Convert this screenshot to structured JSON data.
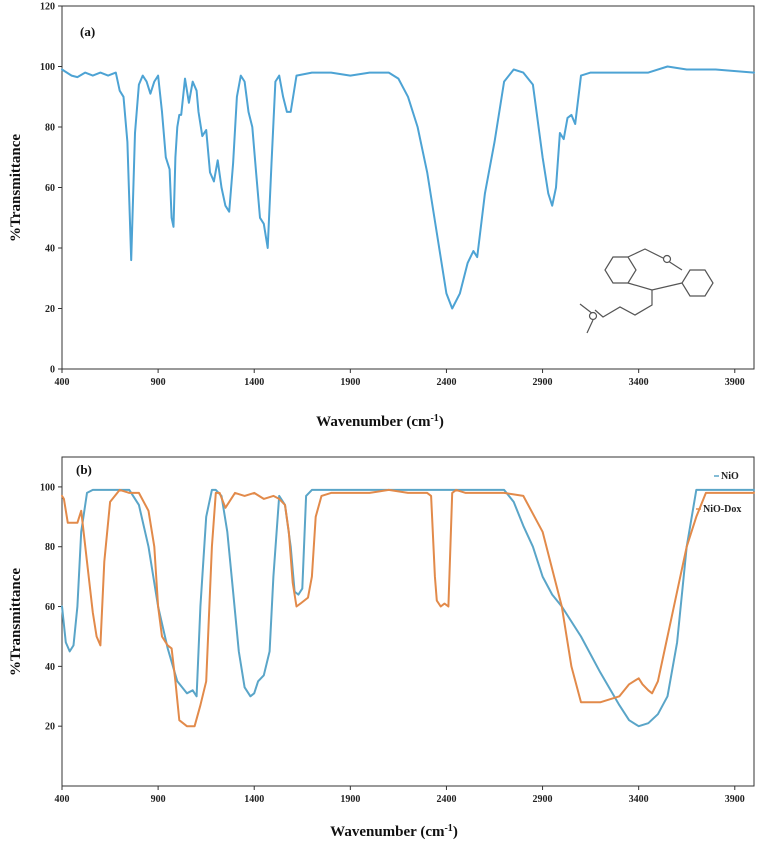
{
  "chart_data": [
    {
      "type": "line",
      "panel_label": "(a)",
      "xlabel": "Wavenumber (cm-1)",
      "xlabel_main": "Wavenumber (cm",
      "xlabel_sup": "-1",
      "xlabel_close": ")",
      "ylabel": "%Transmittance",
      "xlim": [
        400,
        4000
      ],
      "ylim": [
        0,
        120
      ],
      "xticks": [
        "400",
        "900",
        "1400",
        "1900",
        "2400",
        "2900",
        "3400",
        "3900"
      ],
      "yticks": [
        "0",
        "20",
        "40",
        "60",
        "80",
        "100",
        "120"
      ],
      "grid": false,
      "has_structure_inset": true,
      "series": [
        {
          "color": "#4da3d4",
          "x": [
            400,
            450,
            480,
            520,
            560,
            600,
            640,
            680,
            700,
            720,
            740,
            760,
            780,
            800,
            820,
            840,
            860,
            880,
            900,
            920,
            940,
            960,
            970,
            980,
            990,
            1000,
            1010,
            1020,
            1040,
            1060,
            1080,
            1100,
            1110,
            1130,
            1150,
            1170,
            1190,
            1210,
            1230,
            1250,
            1270,
            1290,
            1310,
            1330,
            1350,
            1370,
            1390,
            1410,
            1430,
            1450,
            1470,
            1490,
            1510,
            1530,
            1550,
            1570,
            1590,
            1620,
            1700,
            1800,
            1900,
            2000,
            2100,
            2150,
            2200,
            2250,
            2300,
            2350,
            2400,
            2430,
            2470,
            2510,
            2540,
            2560,
            2600,
            2650,
            2700,
            2750,
            2800,
            2850,
            2900,
            2930,
            2950,
            2970,
            2990,
            3010,
            3030,
            3050,
            3070,
            3100,
            3150,
            3300,
            3450,
            3550,
            3650,
            3800,
            4000
          ],
          "y": [
            99,
            97,
            96.5,
            98,
            97,
            98,
            97,
            98,
            92,
            90,
            75,
            36,
            78,
            94,
            97,
            95,
            91,
            95,
            97,
            85,
            70,
            66,
            50,
            47,
            70,
            80,
            84,
            84,
            96,
            88,
            95,
            92,
            85,
            77,
            79,
            65,
            62,
            69,
            60,
            54,
            52,
            68,
            90,
            97,
            95,
            85,
            80,
            65,
            50,
            48,
            40,
            68,
            95,
            97,
            90,
            85,
            85,
            97,
            98,
            98,
            97,
            98,
            98,
            96,
            90,
            80,
            65,
            45,
            25,
            20,
            25,
            35,
            39,
            37,
            58,
            75,
            95,
            99,
            98,
            94,
            70,
            58,
            54,
            60,
            78,
            76,
            83,
            84,
            81,
            97,
            98,
            98,
            98,
            100,
            99,
            99,
            98
          ]
        }
      ]
    },
    {
      "type": "line",
      "panel_label": "(b)",
      "xlabel": "Wavenumber (cm-1)",
      "xlabel_main": "Wavenumber (cm",
      "xlabel_sup": "-1",
      "xlabel_close": ")",
      "ylabel": "%Transmittance",
      "xlim": [
        400,
        4000
      ],
      "ylim": [
        0,
        110
      ],
      "xticks": [
        "400",
        "900",
        "1400",
        "1900",
        "2400",
        "2900",
        "3400",
        "3900"
      ],
      "yticks": [
        "20",
        "40",
        "60",
        "80",
        "100"
      ],
      "grid": false,
      "legend": "right",
      "series": [
        {
          "name": "NiO",
          "color": "#5aa5c8",
          "x": [
            400,
            420,
            440,
            460,
            480,
            500,
            530,
            560,
            600,
            650,
            700,
            750,
            800,
            850,
            900,
            950,
            1000,
            1050,
            1080,
            1100,
            1120,
            1150,
            1180,
            1200,
            1230,
            1260,
            1290,
            1320,
            1350,
            1380,
            1400,
            1420,
            1450,
            1480,
            1500,
            1530,
            1560,
            1590,
            1610,
            1630,
            1650,
            1670,
            1700,
            1750,
            1800,
            1900,
            2000,
            2200,
            2400,
            2500,
            2600,
            2650,
            2700,
            2750,
            2800,
            2850,
            2900,
            2950,
            3000,
            3100,
            3200,
            3300,
            3350,
            3400,
            3450,
            3500,
            3550,
            3600,
            3650,
            3700,
            3750,
            3800,
            4000
          ],
          "y": [
            60,
            48,
            45,
            47,
            60,
            85,
            98,
            99,
            99,
            99,
            99,
            99,
            94,
            80,
            60,
            46,
            35,
            31,
            32,
            30,
            60,
            90,
            99,
            99,
            97,
            85,
            65,
            45,
            33,
            30,
            31,
            35,
            37,
            45,
            70,
            97,
            94,
            80,
            65,
            64,
            66,
            97,
            99,
            99,
            99,
            99,
            99,
            99,
            99,
            99,
            99,
            99,
            99,
            95,
            87,
            80,
            70,
            64,
            60,
            50,
            38,
            27,
            22,
            20,
            21,
            24,
            30,
            48,
            80,
            99,
            99,
            99,
            99
          ]
        },
        {
          "name": "NiO-Dox",
          "color": "#e28a4a",
          "x": [
            400,
            410,
            430,
            450,
            480,
            500,
            530,
            560,
            580,
            600,
            620,
            650,
            700,
            750,
            800,
            850,
            880,
            900,
            920,
            950,
            970,
            990,
            1010,
            1050,
            1090,
            1120,
            1150,
            1180,
            1200,
            1220,
            1250,
            1300,
            1350,
            1400,
            1450,
            1500,
            1530,
            1560,
            1580,
            1600,
            1620,
            1640,
            1660,
            1680,
            1700,
            1720,
            1750,
            1800,
            1900,
            2000,
            2100,
            2200,
            2300,
            2320,
            2340,
            2350,
            2370,
            2390,
            2410,
            2430,
            2450,
            2500,
            2600,
            2700,
            2800,
            2900,
            3000,
            3050,
            3100,
            3150,
            3200,
            3300,
            3350,
            3400,
            3420,
            3450,
            3470,
            3500,
            3550,
            3600,
            3650,
            3700,
            3750,
            3800,
            4000
          ],
          "y": [
            97,
            96,
            88,
            88,
            88,
            92,
            75,
            58,
            50,
            47,
            75,
            95,
            99,
            98,
            98,
            92,
            80,
            60,
            50,
            47,
            46,
            35,
            22,
            20,
            20,
            27,
            35,
            80,
            98,
            98,
            93,
            98,
            97,
            98,
            96,
            97,
            96,
            94,
            85,
            68,
            60,
            61,
            62,
            63,
            70,
            90,
            97,
            98,
            98,
            98,
            99,
            98,
            98,
            97,
            70,
            62,
            60,
            61,
            60,
            98,
            99,
            98,
            98,
            98,
            97,
            85,
            60,
            40,
            28,
            28,
            28,
            30,
            34,
            36,
            34,
            32,
            31,
            35,
            50,
            65,
            80,
            90,
            98,
            98,
            98
          ]
        }
      ]
    }
  ]
}
